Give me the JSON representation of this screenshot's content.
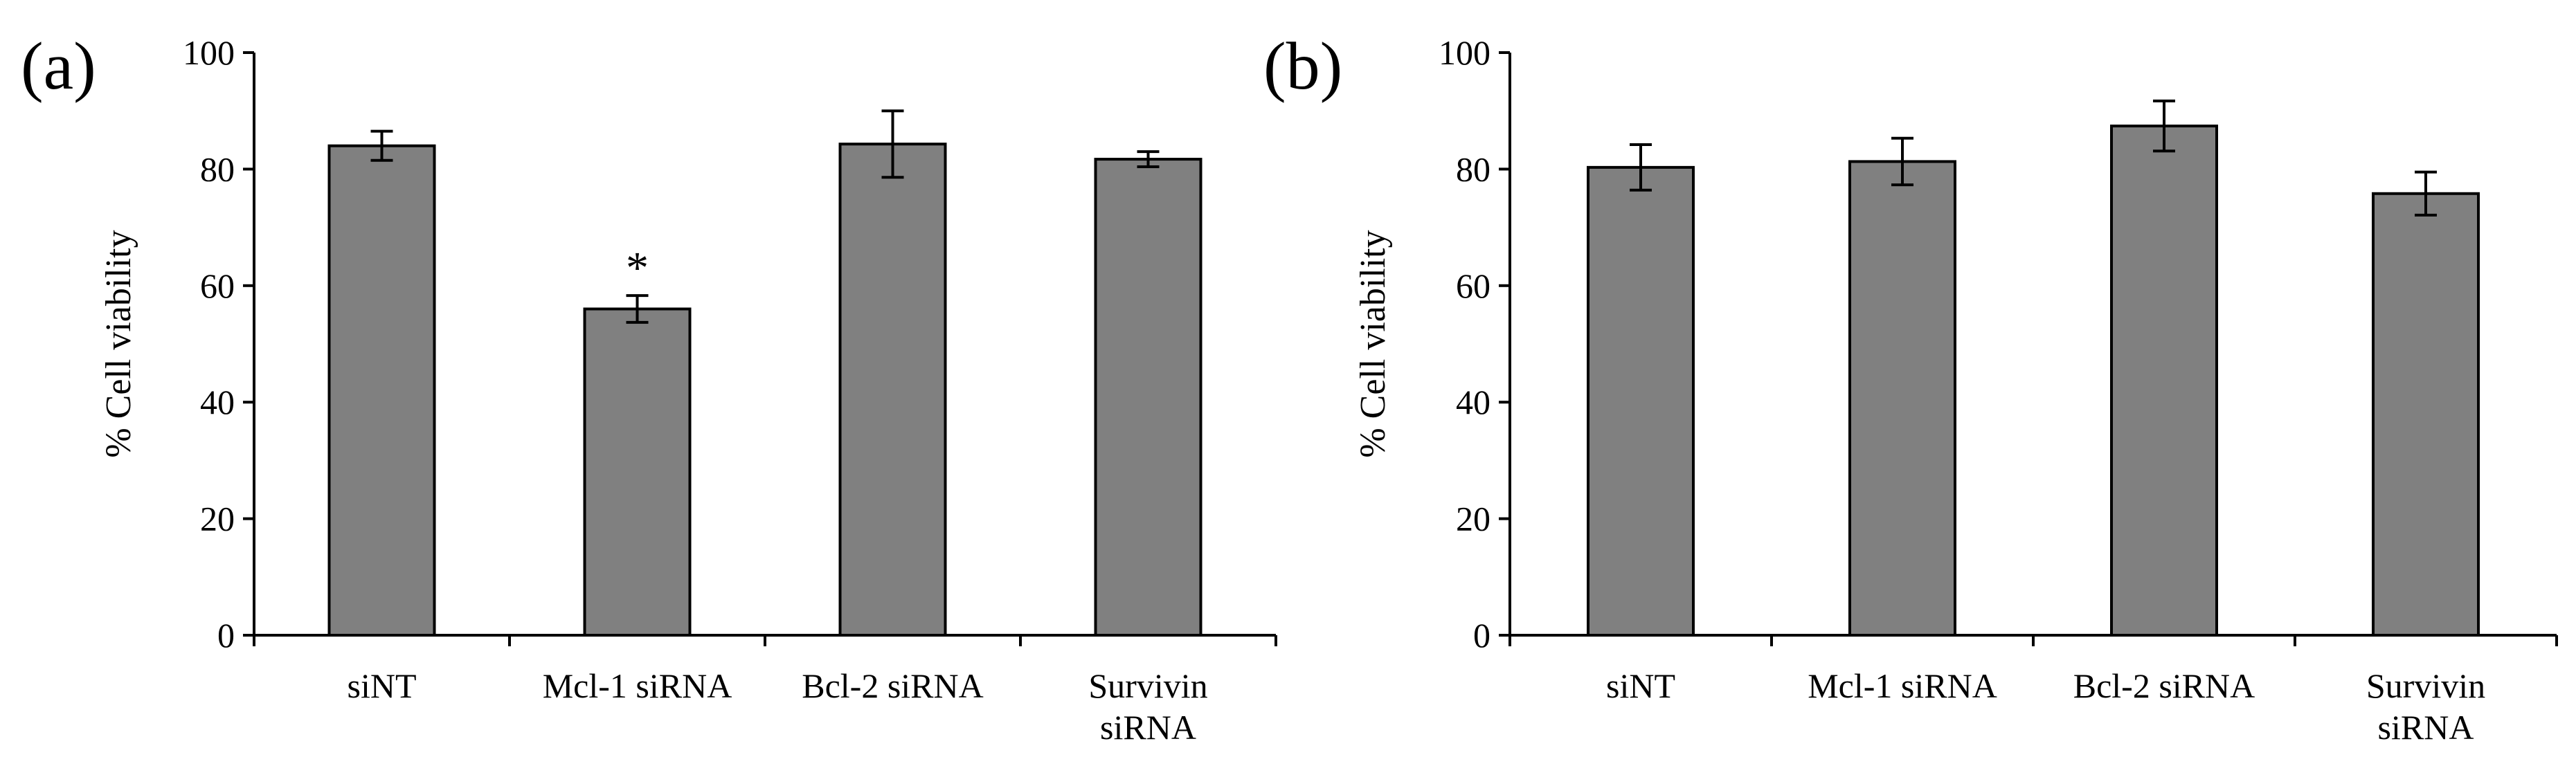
{
  "chart_data": [
    {
      "type": "bar",
      "panel_label": "(a)",
      "ylabel": "% Cell viability",
      "xlabel": "",
      "ylim": [
        0,
        100
      ],
      "yticks": [
        "0",
        "20",
        "40",
        "60",
        "80",
        "100"
      ],
      "categories": [
        [
          "siNT"
        ],
        [
          "Mcl-1 siRNA"
        ],
        [
          "Bcl-2 siRNA"
        ],
        [
          "Survivin",
          "siRNA"
        ]
      ],
      "values": [
        84,
        56,
        84.3,
        81.7
      ],
      "error": [
        2.5,
        2.3,
        5.7,
        1.3
      ],
      "annotations": [
        "",
        "*",
        "",
        ""
      ],
      "bar_color": "#808080",
      "grid": false,
      "legend": "none"
    },
    {
      "type": "bar",
      "panel_label": "(b)",
      "ylabel": "% Cell viability",
      "xlabel": "",
      "ylim": [
        0,
        100
      ],
      "yticks": [
        "0",
        "20",
        "40",
        "60",
        "80",
        "100"
      ],
      "categories": [
        [
          "siNT"
        ],
        [
          "Mcl-1 siRNA"
        ],
        [
          "Bcl-2 siRNA"
        ],
        [
          "Survivin",
          "siRNA"
        ]
      ],
      "values": [
        80.3,
        81.3,
        87.4,
        75.8
      ],
      "error": [
        3.9,
        4.0,
        4.3,
        3.7
      ],
      "annotations": [
        "",
        "",
        "",
        ""
      ],
      "bar_color": "#808080",
      "grid": false,
      "legend": "none"
    }
  ]
}
